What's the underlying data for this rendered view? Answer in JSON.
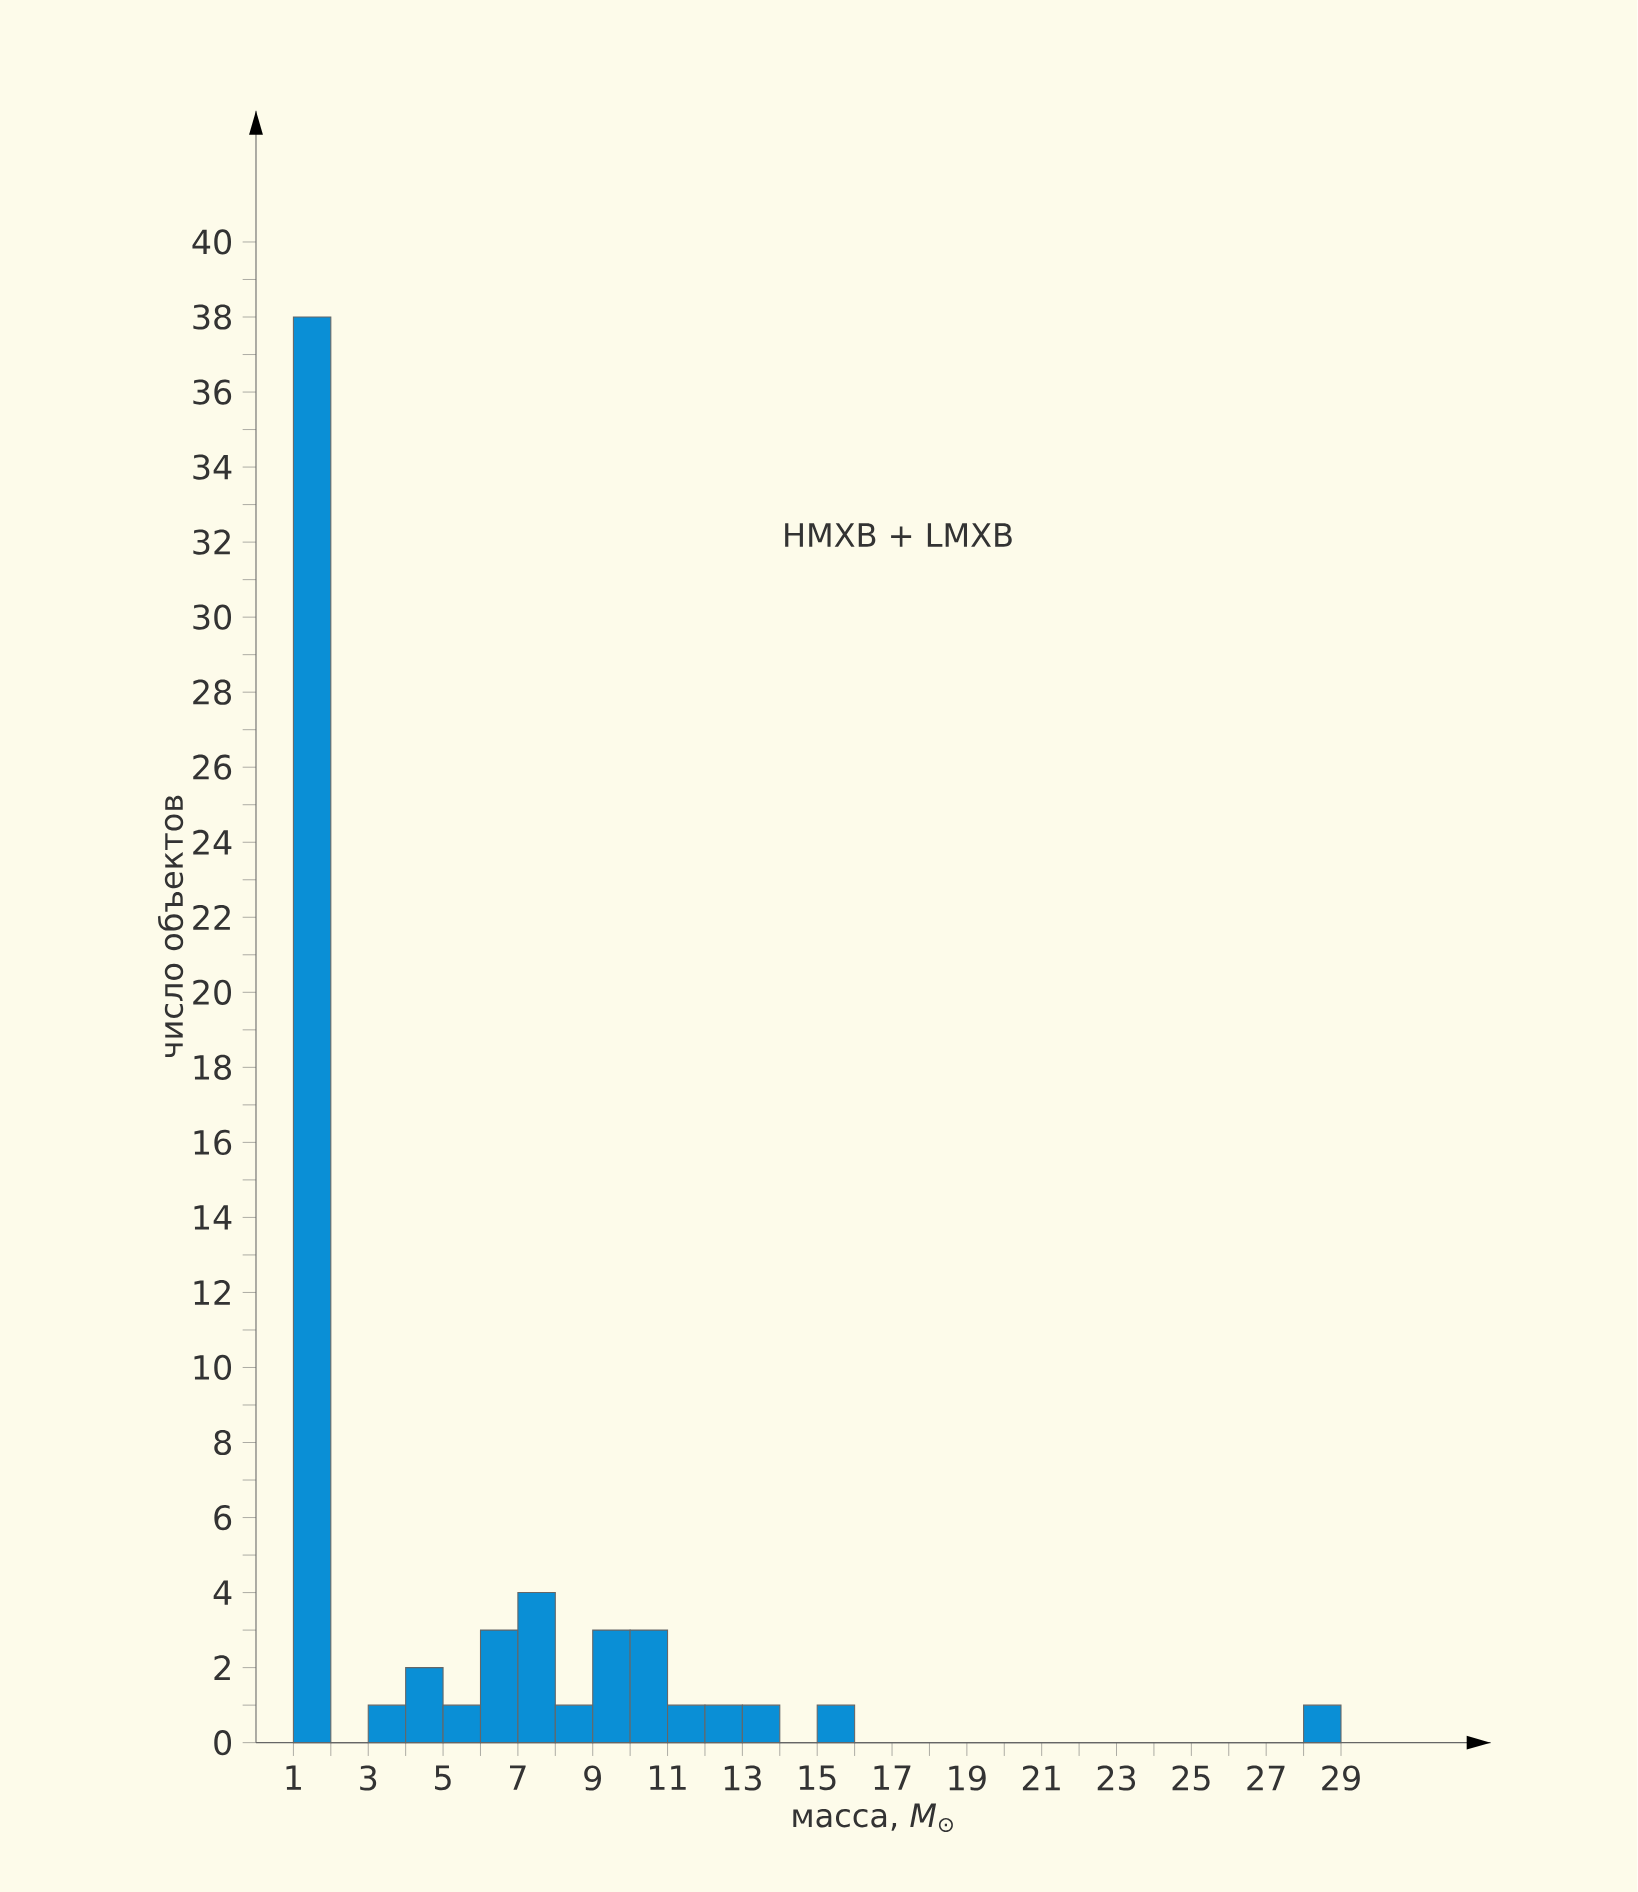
{
  "chart_data": {
    "type": "histogram",
    "xlabel": "масса, *M*$_{⊙}$",
    "ylabel": "число объектов",
    "annotations": [
      "HMXB + LMXB"
    ],
    "bins": [
      1,
      2,
      3,
      4,
      5,
      6,
      7,
      8,
      9,
      10,
      11,
      12,
      13,
      14,
      15,
      16,
      17,
      18,
      19,
      20,
      21,
      22,
      23,
      24,
      25,
      26,
      27,
      28,
      29
    ],
    "values": [
      38,
      0,
      1,
      2,
      1,
      3,
      4,
      1,
      3,
      3,
      1,
      1,
      1,
      0,
      1,
      0,
      0,
      0,
      0,
      0,
      0,
      0,
      0,
      0,
      0,
      0,
      0,
      1
    ],
    "color": "#0a8fd6",
    "xlim": [
      0,
      33
    ],
    "ylim": [
      0,
      43.5
    ],
    "xticks": [
      1,
      {
        "value": 2,
        "label": null
      },
      3,
      {
        "value": 4,
        "label": null
      },
      5,
      {
        "value": 6,
        "label": null
      },
      7,
      {
        "value": 8,
        "label": null
      },
      9,
      {
        "value": 10,
        "label": null
      },
      11,
      {
        "value": 12,
        "label": null
      },
      13,
      {
        "value": 14,
        "label": null
      },
      15,
      {
        "value": 16,
        "label": null
      },
      17,
      {
        "value": 18,
        "label": null
      },
      19,
      {
        "value": 20,
        "label": null
      },
      21,
      {
        "value": 22,
        "label": null
      },
      23,
      {
        "value": 24,
        "label": null
      },
      25,
      {
        "value": 26,
        "label": null
      },
      27,
      {
        "value": 28,
        "label": null
      },
      29
    ],
    "yticks": [
      0,
      {
        "value": 1,
        "label": null
      },
      2,
      {
        "value": 3,
        "label": null
      },
      4,
      {
        "value": 5,
        "label": null
      },
      6,
      {
        "value": 7,
        "label": null
      },
      8,
      {
        "value": 9,
        "label": null
      },
      10,
      {
        "value": 11,
        "label": null
      },
      12,
      {
        "value": 13,
        "label": null
      },
      14,
      {
        "value": 15,
        "label": null
      },
      16,
      {
        "value": 17,
        "label": null
      },
      18,
      {
        "value": 19,
        "label": null
      },
      20,
      {
        "value": 21,
        "label": null
      },
      22,
      {
        "value": 23,
        "label": null
      },
      24,
      {
        "value": 25,
        "label": null
      },
      26,
      {
        "value": 27,
        "label": null
      },
      28,
      {
        "value": 29,
        "label": null
      },
      30,
      {
        "value": 31,
        "label": null
      },
      32,
      {
        "value": 33,
        "label": null
      },
      34,
      {
        "value": 35,
        "label": null
      },
      36,
      {
        "value": 37,
        "label": null
      },
      38,
      {
        "value": 39,
        "label": null
      },
      40
    ]
  }
}
